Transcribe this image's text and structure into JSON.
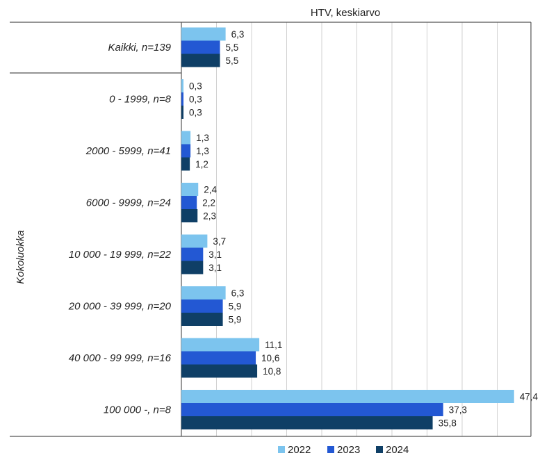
{
  "chart_data": {
    "type": "bar",
    "orientation": "horizontal",
    "title": "HTV, keskiarvo",
    "ylabel": "Kokoluokka",
    "xlabel": "",
    "xlim": [
      0,
      50
    ],
    "grid": true,
    "legend_position": "bottom",
    "categories": [
      "Kaikki, n=139",
      "0 - 1999, n=8",
      "2000 - 5999, n=41",
      "6000 - 9999, n=24",
      "10 000 - 19 999, n=22",
      "20 000 - 39 999, n=20",
      "40 000 - 99 999, n=16",
      "100 000 -, n=8"
    ],
    "series": [
      {
        "name": "2022",
        "color": "#7cc4ee",
        "values": [
          6.3,
          0.3,
          1.3,
          2.4,
          3.7,
          6.3,
          11.1,
          47.4
        ],
        "labels": [
          "6,3",
          "0,3",
          "1,3",
          "2,4",
          "3,7",
          "6,3",
          "11,1",
          "47,4"
        ]
      },
      {
        "name": "2023",
        "color": "#2358d3",
        "values": [
          5.5,
          0.3,
          1.3,
          2.2,
          3.1,
          5.9,
          10.6,
          37.3
        ],
        "labels": [
          "5,5",
          "0,3",
          "1,3",
          "2,2",
          "3,1",
          "5,9",
          "10,6",
          "37,3"
        ]
      },
      {
        "name": "2024",
        "color": "#0f3f66",
        "values": [
          5.5,
          0.3,
          1.2,
          2.3,
          3.1,
          5.9,
          10.8,
          35.8
        ],
        "labels": [
          "5,5",
          "0,3",
          "1,2",
          "2,3",
          "3,1",
          "5,9",
          "10,8",
          "35,8"
        ]
      }
    ]
  }
}
